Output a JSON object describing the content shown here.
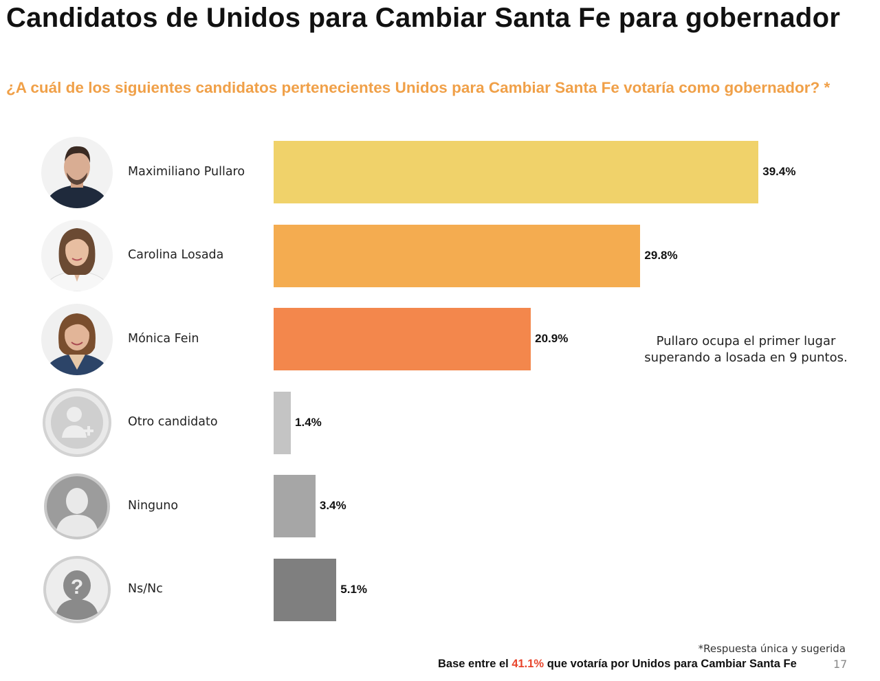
{
  "header": {
    "title": "Candidatos de Unidos para Cambiar Santa Fe para gobernador",
    "question": "¿A cuál de los siguientes candidatos pertenecientes Unidos para Cambiar Santa Fe votaría como gobernador? *"
  },
  "chart_data": {
    "type": "bar",
    "orientation": "horizontal",
    "categories": [
      "Maximiliano Pullaro",
      "Carolina Losada",
      "Mónica Fein",
      "Otro candidato",
      "Ninguno",
      "Ns/Nc"
    ],
    "values": [
      39.4,
      29.8,
      20.9,
      1.4,
      3.4,
      5.1
    ],
    "value_labels": [
      "39.4%",
      "29.8%",
      "20.9%",
      "1.4%",
      "3.4%",
      "5.1%"
    ],
    "colors": [
      "#f0d26a",
      "#f4ac50",
      "#f3874c",
      "#c4c4c4",
      "#a6a6a6",
      "#7f7f7f"
    ],
    "icons": [
      "candidate-photo-icon",
      "candidate-photo-icon",
      "candidate-photo-icon",
      "generic-person-add-icon",
      "generic-person-icon",
      "person-question-icon"
    ],
    "unit": "%",
    "title": "",
    "xlabel": "",
    "ylabel": "",
    "grid": false
  },
  "annotation": "Pullaro ocupa el primer lugar superando a losada en 9 puntos.",
  "footer": {
    "note": "*Respuesta única y sugerida",
    "base_prefix": "Base entre el ",
    "base_highlight": "41.1%",
    "base_suffix": " que votaría por Unidos para Cambiar Santa Fe",
    "page_number": "17"
  }
}
